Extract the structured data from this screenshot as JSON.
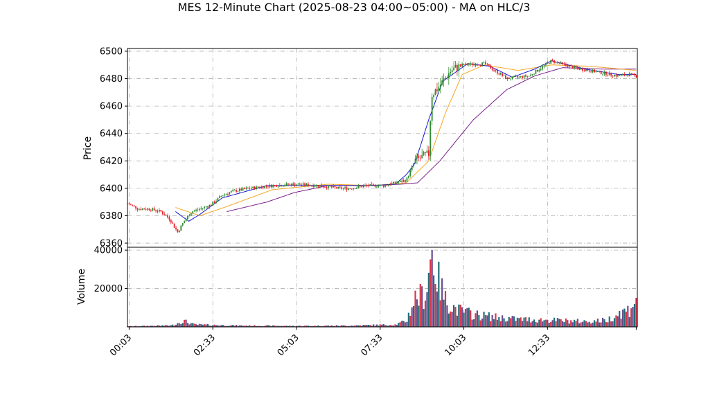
{
  "chart_data": {
    "type": "candlestick",
    "title": "MES 12-Minute Chart (2025-08-23 04:00~05:00) - MA on HLC/3",
    "price_panel": {
      "ylabel": "Price",
      "ylim": [
        6357,
        6502
      ],
      "yticks": [
        6360,
        6380,
        6400,
        6420,
        6440,
        6460,
        6480,
        6500
      ],
      "grid": true
    },
    "volume_panel": {
      "ylabel": "Volume",
      "ylim": [
        0,
        41500
      ],
      "yticks": [
        20000,
        40000
      ],
      "grid": true
    },
    "x_axis": {
      "range_minutes": [
        0,
        914
      ],
      "ticks": [
        {
          "minute": 3,
          "label": "00:03"
        },
        {
          "minute": 153,
          "label": "02:33"
        },
        {
          "minute": 303,
          "label": "05:03"
        },
        {
          "minute": 453,
          "label": "07:33"
        },
        {
          "minute": 603,
          "label": "10:03"
        },
        {
          "minute": 753,
          "label": "12:33"
        }
      ]
    },
    "colors": {
      "up": "#2e8b2e",
      "down": "#e8202a",
      "vol_a": "#1f6f78",
      "vol_b": "#d9364a",
      "vol_c": "#6a4c93",
      "ma_fast": "#1414d4",
      "ma_mid": "#f5a623",
      "ma_slow": "#7a1f8a",
      "grid": "#b0b0b0"
    },
    "price_anchors": [
      [
        0,
        6389
      ],
      [
        20,
        6385
      ],
      [
        40,
        6385
      ],
      [
        60,
        6383
      ],
      [
        75,
        6378
      ],
      [
        90,
        6368
      ],
      [
        100,
        6375
      ],
      [
        115,
        6383
      ],
      [
        130,
        6385
      ],
      [
        150,
        6388
      ],
      [
        170,
        6395
      ],
      [
        190,
        6398
      ],
      [
        220,
        6400
      ],
      [
        260,
        6402
      ],
      [
        300,
        6403
      ],
      [
        340,
        6402
      ],
      [
        380,
        6400
      ],
      [
        400,
        6400
      ],
      [
        430,
        6402
      ],
      [
        460,
        6402
      ],
      [
        500,
        6406
      ],
      [
        515,
        6420
      ],
      [
        540,
        6425
      ],
      [
        545,
        6468
      ],
      [
        560,
        6475
      ],
      [
        580,
        6486
      ],
      [
        600,
        6490
      ],
      [
        640,
        6491
      ],
      [
        680,
        6480
      ],
      [
        720,
        6482
      ],
      [
        760,
        6493
      ],
      [
        800,
        6488
      ],
      [
        840,
        6485
      ],
      [
        880,
        6482
      ],
      [
        900,
        6483
      ],
      [
        912,
        6482
      ]
    ],
    "volume_anchors": [
      [
        0,
        300
      ],
      [
        80,
        800
      ],
      [
        100,
        3200
      ],
      [
        120,
        1200
      ],
      [
        200,
        700
      ],
      [
        300,
        500
      ],
      [
        400,
        700
      ],
      [
        480,
        1200
      ],
      [
        500,
        3000
      ],
      [
        515,
        15000
      ],
      [
        535,
        17000
      ],
      [
        545,
        40000
      ],
      [
        555,
        26000
      ],
      [
        570,
        14000
      ],
      [
        590,
        9000
      ],
      [
        620,
        6500
      ],
      [
        660,
        5000
      ],
      [
        700,
        4000
      ],
      [
        760,
        3500
      ],
      [
        820,
        2800
      ],
      [
        860,
        3500
      ],
      [
        880,
        7000
      ],
      [
        900,
        9000
      ],
      [
        910,
        15000
      ]
    ],
    "ma_fast_anchors": [
      [
        86,
        6383
      ],
      [
        110,
        6376
      ],
      [
        130,
        6381
      ],
      [
        170,
        6393
      ],
      [
        250,
        6402
      ],
      [
        350,
        6402
      ],
      [
        440,
        6402
      ],
      [
        480,
        6403
      ],
      [
        500,
        6410
      ],
      [
        515,
        6418
      ],
      [
        540,
        6450
      ],
      [
        565,
        6478
      ],
      [
        610,
        6491
      ],
      [
        650,
        6489
      ],
      [
        690,
        6481
      ],
      [
        730,
        6487
      ],
      [
        760,
        6493
      ],
      [
        820,
        6487
      ],
      [
        880,
        6483
      ],
      [
        912,
        6483
      ]
    ],
    "ma_mid_anchors": [
      [
        86,
        6386
      ],
      [
        130,
        6380
      ],
      [
        180,
        6387
      ],
      [
        260,
        6399
      ],
      [
        360,
        6403
      ],
      [
        440,
        6402
      ],
      [
        500,
        6404
      ],
      [
        540,
        6420
      ],
      [
        570,
        6455
      ],
      [
        600,
        6483
      ],
      [
        640,
        6490
      ],
      [
        700,
        6486
      ],
      [
        760,
        6490
      ],
      [
        830,
        6489
      ],
      [
        912,
        6486
      ]
    ],
    "ma_slow_anchors": [
      [
        178,
        6383
      ],
      [
        250,
        6390
      ],
      [
        300,
        6397
      ],
      [
        360,
        6402
      ],
      [
        430,
        6402
      ],
      [
        490,
        6403
      ],
      [
        520,
        6404
      ],
      [
        560,
        6420
      ],
      [
        620,
        6450
      ],
      [
        680,
        6472
      ],
      [
        730,
        6482
      ],
      [
        780,
        6488
      ],
      [
        850,
        6487
      ],
      [
        912,
        6487
      ]
    ]
  }
}
